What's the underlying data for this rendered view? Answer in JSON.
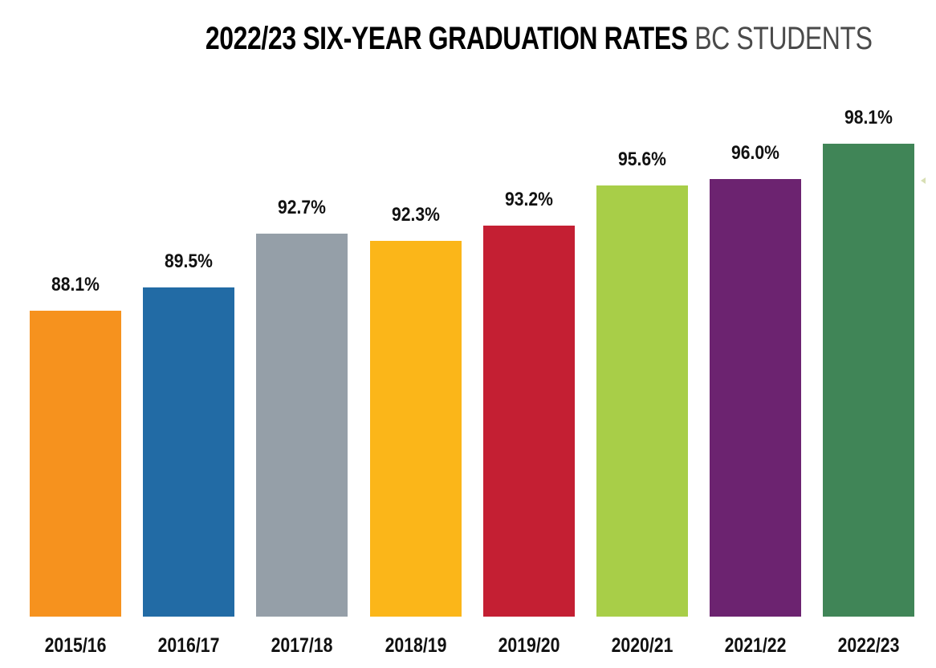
{
  "chart_data": {
    "type": "bar",
    "title": "2022/23 SIX-YEAR GRADUATION RATES",
    "subtitle": "BC STUDENTS",
    "xlabel": "",
    "ylabel": "",
    "categories": [
      "2015/16",
      "2016/17",
      "2017/18",
      "2018/19",
      "2019/20",
      "2020/21",
      "2021/22",
      "2022/23"
    ],
    "values": [
      88.1,
      89.5,
      92.7,
      92.3,
      93.2,
      95.6,
      96.0,
      98.1
    ],
    "value_labels": [
      "88.1%",
      "89.5%",
      "92.7%",
      "92.3%",
      "93.2%",
      "95.6%",
      "96.0%",
      "98.1%"
    ],
    "colors": [
      "#f6921e",
      "#226ba5",
      "#959fa8",
      "#fbb619",
      "#c41f33",
      "#a8ce48",
      "#6c2370",
      "#408557"
    ],
    "grid": false,
    "legend": "none",
    "axis_visible": false
  },
  "title": {
    "main": "2022/23 SIX-YEAR GRADUATION RATES",
    "sub": "BC STUDENTS"
  }
}
